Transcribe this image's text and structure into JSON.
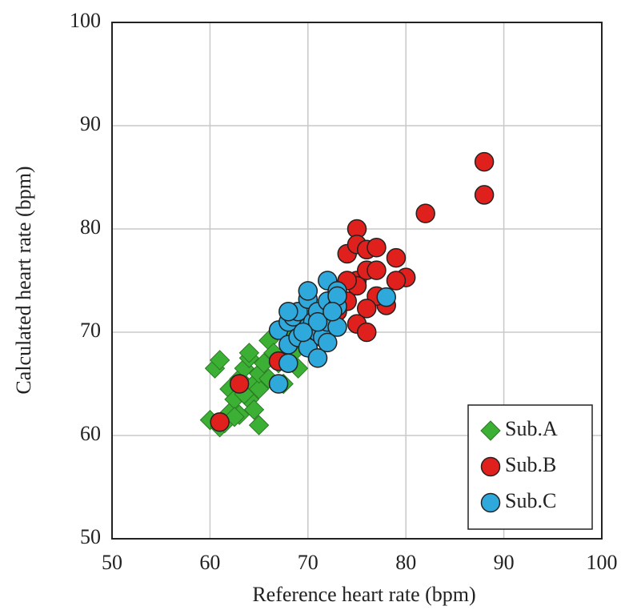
{
  "chart_data": {
    "type": "scatter",
    "x_label": "Reference heart rate (bpm)",
    "y_label": "Calculated  heart rate (bpm)",
    "xlim": [
      50,
      100
    ],
    "ylim": [
      50,
      100
    ],
    "xticks": [
      50,
      60,
      70,
      80,
      90,
      100
    ],
    "yticks": [
      50,
      60,
      70,
      80,
      90,
      100
    ],
    "grid": true,
    "legend_position": "lower right",
    "series": [
      {
        "name": "Sub.A",
        "color": "#3cb034",
        "marker": "diamond",
        "x": [
          60.5,
          61,
          60,
          61,
          61.5,
          62,
          62,
          62.5,
          63,
          63,
          63.5,
          64,
          64,
          64,
          64.5,
          65,
          65,
          65,
          65.5,
          66,
          66,
          66.5,
          67,
          67.5,
          68,
          69,
          68.5,
          62.5,
          63.5,
          64.5
        ],
        "values": [
          66.5,
          67.3,
          61.5,
          60.8,
          61.2,
          62.2,
          64.5,
          63.5,
          62,
          65.5,
          66.5,
          67.5,
          68,
          63.5,
          65,
          64.5,
          66,
          61,
          67,
          69.2,
          65.5,
          68,
          67,
          65,
          69.5,
          66.5,
          68,
          61.8,
          64,
          62.5
        ]
      },
      {
        "name": "Sub.B",
        "color": "#e0201c",
        "marker": "circle",
        "x": [
          61,
          63,
          67,
          74,
          75,
          75,
          75,
          75,
          76,
          77,
          76,
          77,
          79,
          80,
          79,
          78,
          77,
          76,
          75,
          76,
          74,
          82,
          88,
          88,
          73,
          74
        ],
        "values": [
          61.3,
          65,
          67.2,
          77.6,
          80,
          78.5,
          75,
          74.5,
          78,
          78.2,
          76,
          76,
          77.2,
          75.3,
          75,
          72.6,
          73.5,
          72.3,
          70.8,
          70,
          73,
          81.5,
          86.5,
          83.3,
          72,
          75
        ]
      },
      {
        "name": "Sub.C",
        "color": "#2fa8dc",
        "marker": "circle",
        "x": [
          67,
          67,
          68,
          68,
          68,
          68.5,
          69,
          69,
          70,
          70,
          70,
          70.5,
          71,
          71,
          71,
          71.5,
          72,
          72,
          72,
          72,
          73,
          73,
          73,
          73,
          78,
          71,
          69.5,
          72.5,
          68,
          70
        ],
        "values": [
          70.2,
          65,
          68.8,
          67,
          71,
          71.5,
          72,
          69.5,
          73.2,
          70.5,
          68.5,
          71,
          72,
          70,
          67.5,
          69.5,
          75,
          73,
          71,
          69,
          74,
          72.5,
          70.5,
          73.5,
          73.4,
          71,
          70,
          72,
          72,
          74
        ]
      }
    ]
  }
}
